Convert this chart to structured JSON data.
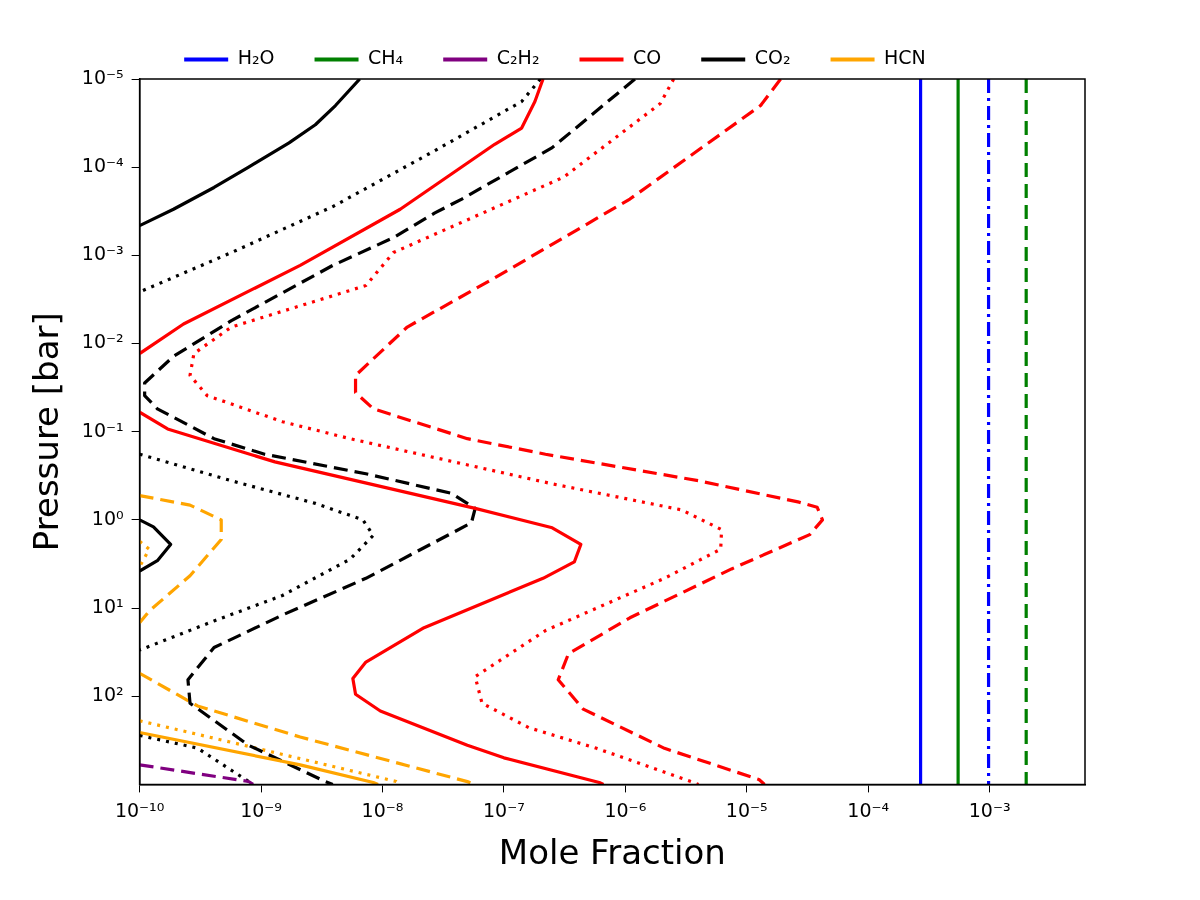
{
  "chart_data": {
    "type": "line",
    "xlabel": "Mole Fraction",
    "ylabel": "Pressure [bar]",
    "log": "xy",
    "legend": "top",
    "grid": false,
    "marker": "none",
    "xlim": [
      1e-10,
      0.0061
    ],
    "ylim": [
      1000,
      1e-05
    ],
    "xticks": [
      {
        "value": 1e-10,
        "label": "10⁻¹⁰"
      },
      {
        "value": 1e-09,
        "label": "10⁻⁹"
      },
      {
        "value": 1e-08,
        "label": "10⁻⁸"
      },
      {
        "value": 1e-07,
        "label": "10⁻⁷"
      },
      {
        "value": 1e-06,
        "label": "10⁻⁶"
      },
      {
        "value": 1e-05,
        "label": "10⁻⁵"
      },
      {
        "value": 0.0001,
        "label": "10⁻⁴"
      },
      {
        "value": 0.001,
        "label": "10⁻³"
      }
    ],
    "yticks": [
      {
        "value": 1e-05,
        "label": "10⁻⁵"
      },
      {
        "value": 0.0001,
        "label": "10⁻⁴"
      },
      {
        "value": 0.001,
        "label": "10⁻³"
      },
      {
        "value": 0.01,
        "label": "10⁻²"
      },
      {
        "value": 0.1,
        "label": "10⁻¹"
      },
      {
        "value": 1,
        "label": "10⁰"
      },
      {
        "value": 10,
        "label": "10¹"
      },
      {
        "value": 100,
        "label": "10²"
      }
    ],
    "series": [
      {
        "name": "H₂O",
        "color": "#0000ff",
        "line_style": "solid",
        "x": [
          0.00027,
          0.00027
        ],
        "values": [
          1e-05,
          1000
        ]
      },
      {
        "name": "CH₄",
        "color": "#008000",
        "line_style": "solid",
        "x": [
          0.00055,
          0.00055
        ],
        "values": [
          1e-05,
          1000
        ]
      },
      {
        "name": "C₂H₂",
        "color": "#800080",
        "line_style": "dashed",
        "x": [
          1e-10,
          7.9e-10,
          8.6e-10
        ],
        "values": [
          600,
          927,
          1000
        ]
      },
      {
        "name": "CO",
        "color": "#ff0000",
        "line_style": "solid",
        "x": [
          2.1e-07,
          1.8e-07,
          1.4e-07,
          8.4e-08,
          1.4e-08,
          2.1e-09,
          2.3e-10,
          1e-10,
          null,
          1e-10,
          1.7e-10,
          1.3e-09,
          5.8e-08,
          2.5e-07,
          4.3e-07,
          3.8e-07,
          2.1e-07,
          2.2e-08,
          7.3e-09,
          5.7e-09,
          6e-09,
          9.6e-09,
          5e-08,
          1e-07,
          6.1e-07,
          6.6e-07
        ],
        "values": [
          1e-05,
          1.8e-05,
          3.6e-05,
          5.5e-05,
          0.0003,
          0.0013,
          0.006,
          0.013,
          null,
          0.06,
          0.093,
          0.22,
          0.74,
          1.23,
          1.9,
          3.0,
          4.6,
          16.7,
          41,
          63,
          95,
          147,
          360,
          500,
          950,
          1000
        ]
      },
      {
        "name": "CO₂",
        "color": "#000000",
        "line_style": "solid",
        "x": [
          1e-10,
          1.9e-10,
          4.1e-10,
          7.9e-10,
          1.7e-09,
          2.8e-09,
          4.1e-09,
          6.5e-09,
          null,
          1e-10,
          1.3e-10,
          1.8e-10,
          1.4e-10,
          1e-10
        ],
        "values": [
          0.00046,
          0.0003,
          0.00017,
          0.0001,
          5.3e-05,
          3.3e-05,
          2e-05,
          1e-05,
          null,
          1.0,
          1.2,
          1.9,
          2.9,
          3.8
        ]
      },
      {
        "name": "HCN",
        "color": "#ffa500",
        "line_style": "solid",
        "x": [
          1e-10,
          2.1e-09,
          8.4e-09,
          9.2e-09
        ],
        "values": [
          258,
          600,
          950,
          1000
        ]
      },
      {
        "color": "#0000ff",
        "line_style": "dashdot",
        "x": [
          0.00098,
          0.00098
        ],
        "values": [
          1e-05,
          1000
        ]
      },
      {
        "color": "#008000",
        "line_style": "dashed",
        "x": [
          0.002,
          0.002
        ],
        "values": [
          1e-05,
          1000
        ]
      },
      {
        "color": "#ff0000",
        "line_style": "dotted",
        "x": [
          2.5e-06,
          1.94e-06,
          3.1e-07,
          1.23e-08,
          7.3e-09,
          5.7e-10,
          2.8e-10,
          2.6e-10,
          3.6e-10,
          1.5e-09,
          5.4e-09,
          2.5e-07,
          2.9e-06,
          6.2e-06,
          6.1e-06,
          2.1e-06,
          2.2e-07,
          5.8e-08,
          6.6e-08,
          1.6e-07,
          5.8e-07,
          3.5e-06,
          4e-06
        ],
        "values": [
          1e-05,
          1.9e-05,
          0.00013,
          0.00093,
          0.0022,
          0.0065,
          0.013,
          0.023,
          0.039,
          0.077,
          0.12,
          0.39,
          0.77,
          1.29,
          2.15,
          4.6,
          18,
          60,
          120,
          227,
          390,
          930,
          1000
        ]
      },
      {
        "color": "#ff0000",
        "line_style": "dashed",
        "x": [
          1.9e-05,
          1.3e-05,
          1.09e-06,
          8.4e-08,
          1.6e-08,
          6e-09,
          6e-09,
          8.4e-09,
          5e-08,
          2.2e-07,
          4e-06,
          2.7e-05,
          3.8e-05,
          4.2e-05,
          3.3e-05,
          7.5e-06,
          1.09e-06,
          3.4e-07,
          2.8e-07,
          4.5e-07,
          2.1e-06,
          1.26e-05,
          1.4e-05
        ],
        "values": [
          1e-05,
          2e-05,
          0.00023,
          0.0018,
          0.0065,
          0.023,
          0.036,
          0.055,
          0.12,
          0.18,
          0.36,
          0.63,
          0.72,
          1,
          1.47,
          3.6,
          12.9,
          33,
          65,
          140,
          390,
          880,
          1000
        ]
      },
      {
        "color": "#000000",
        "line_style": "dotted",
        "x": [
          2e-07,
          1.4e-07,
          2.7e-08,
          3.9e-09,
          5.7e-10,
          1e-10,
          null,
          1e-10,
          5.7e-10,
          2.8e-09,
          6.9e-09,
          8.4e-09,
          5.4e-09,
          1.5e-09,
          4.1e-10,
          1e-10,
          null,
          1e-10,
          3e-10,
          7.9e-10,
          8.6e-10
        ],
        "values": [
          1e-05,
          1.8e-05,
          6.5e-05,
          0.00028,
          0.00093,
          0.0026,
          null,
          0.18,
          0.36,
          0.65,
          1,
          1.5,
          2.8,
          7.2,
          14,
          30,
          null,
          278,
          388,
          927,
          1000
        ]
      },
      {
        "color": "#000000",
        "line_style": "dashed",
        "x": [
          1.2e-06,
          2.5e-07,
          4.5e-08,
          2.7e-08,
          1.23e-08,
          3.9e-09,
          5.7e-10,
          1.9e-10,
          1.1e-10,
          1.1e-10,
          1.4e-10,
          4.1e-10,
          1.07e-09,
          7.3e-09,
          3.7e-08,
          5.8e-08,
          5.4e-08,
          7.3e-09,
          1.5e-09,
          4.1e-10,
          2.5e-10,
          2.6e-10,
          7.9e-10,
          3.4e-09,
          3.9e-09
        ],
        "values": [
          1e-05,
          6e-05,
          0.00023,
          0.00033,
          0.00063,
          0.0013,
          0.0055,
          0.014,
          0.028,
          0.039,
          0.055,
          0.12,
          0.18,
          0.3,
          0.5,
          0.74,
          1.08,
          4.6,
          12,
          28,
          65,
          120,
          360,
          930,
          1000
        ]
      },
      {
        "color": "#ffa500",
        "line_style": "dashed",
        "x": [
          1e-10,
          2.6e-10,
          4.7e-10,
          4.7e-10,
          2.6e-10,
          1.2e-10,
          1e-10,
          null,
          1e-10,
          3e-10,
          2.1e-09,
          5e-08,
          5.8e-08
        ],
        "values": [
          0.53,
          0.68,
          1,
          1.67,
          4.3,
          10.8,
          14.7,
          null,
          55,
          129,
          290,
          930,
          1000
        ]
      },
      {
        "color": "#ffa500",
        "line_style": "dotted",
        "x": [
          1e-10,
          1.2e-10,
          1e-10,
          null,
          1e-10,
          5.7e-10,
          1.3e-08,
          1.4e-08
        ],
        "values": [
          1.75,
          2.15,
          3.4,
          null,
          190,
          333,
          927,
          1000
        ]
      }
    ]
  }
}
